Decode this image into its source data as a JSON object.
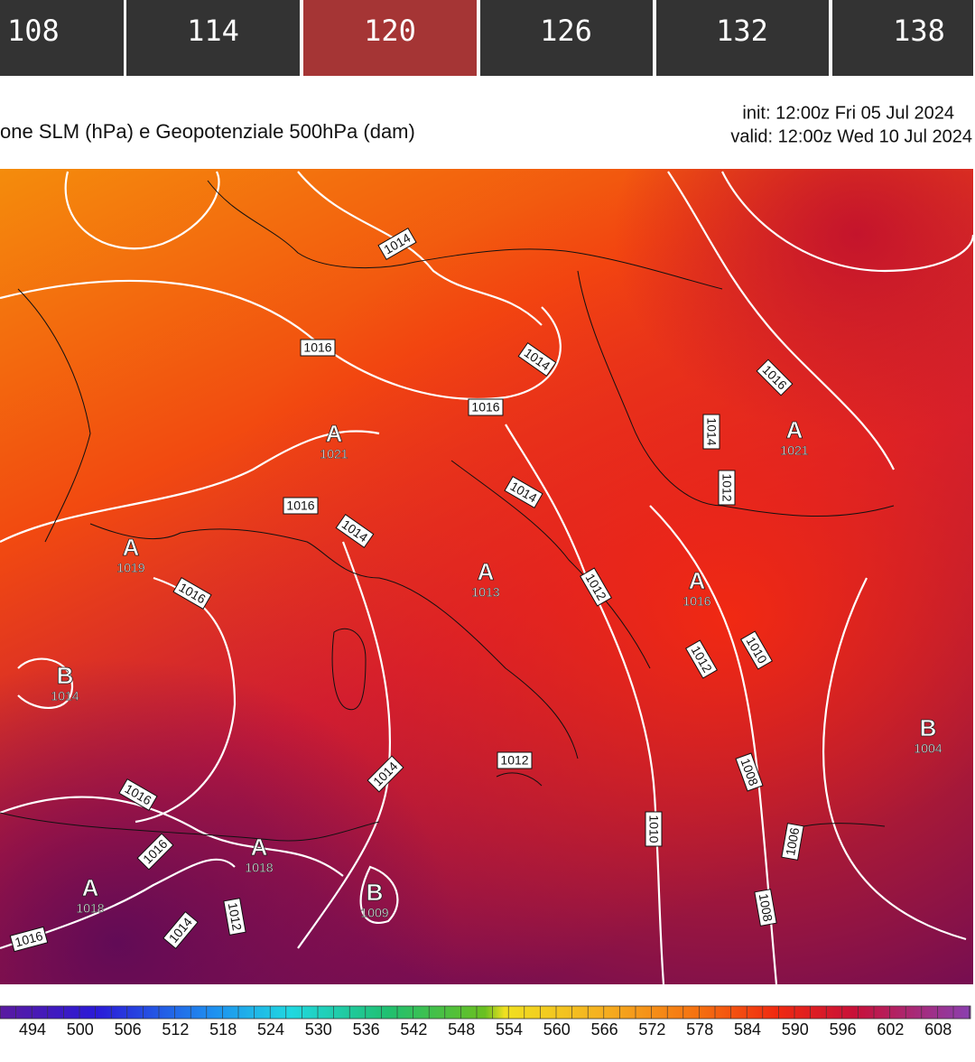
{
  "tabs": [
    "108",
    "114",
    "120",
    "126",
    "132",
    "138"
  ],
  "header": {
    "title": "one SLM (hPa) e Geopotenziale 500hPa (dam)",
    "init": "init: 12:00z Fri 05 Jul 2024",
    "valid": "valid: 12:00z Wed 10 Jul 2024"
  },
  "map": {
    "isobar_labels": [
      "1014",
      "1016",
      "1014",
      "1016",
      "1016",
      "1014",
      "1012",
      "1014",
      "1016",
      "1014",
      "1016",
      "1012",
      "1012",
      "1010",
      "1012",
      "1014",
      "1008",
      "1010",
      "1006",
      "1016",
      "1016",
      "1012",
      "1014",
      "1016",
      "1008"
    ],
    "centers": [
      {
        "symbol": "A",
        "value": "1021"
      },
      {
        "symbol": "A",
        "value": "1021"
      },
      {
        "symbol": "A",
        "value": "1019"
      },
      {
        "symbol": "A",
        "value": "1013"
      },
      {
        "symbol": "A",
        "value": "1016"
      },
      {
        "symbol": "B",
        "value": "1014"
      },
      {
        "symbol": "B",
        "value": "1004"
      },
      {
        "symbol": "A",
        "value": "1018"
      },
      {
        "symbol": "A",
        "value": "1018"
      },
      {
        "symbol": "B",
        "value": "1009"
      }
    ]
  },
  "legend": {
    "ticks": [
      494,
      500,
      506,
      512,
      518,
      524,
      530,
      536,
      542,
      548,
      554,
      560,
      566,
      572,
      578,
      584,
      590,
      596,
      602,
      608
    ]
  }
}
